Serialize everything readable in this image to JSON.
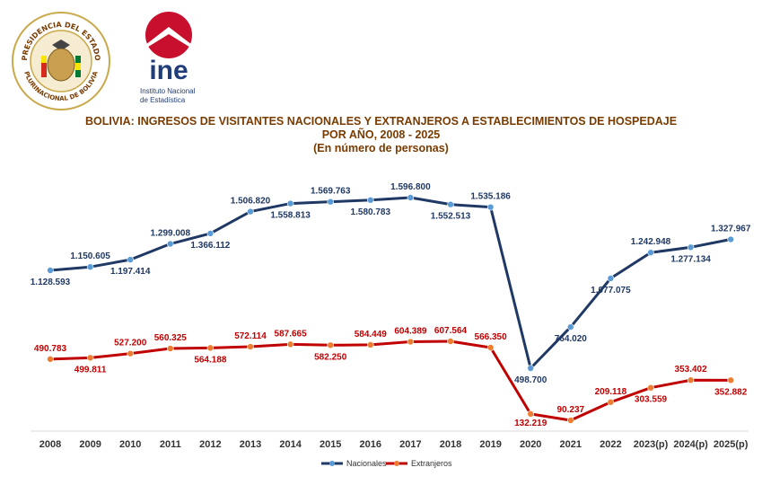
{
  "header": {
    "seal_text_top": "PRESIDENCIA DEL ESTADO",
    "seal_text_bottom": "PLURINACIONAL DE BOLIVIA",
    "logo_main": "ine",
    "logo_sub1": "Instituto Nacional",
    "logo_sub2": "de Estadística"
  },
  "colors": {
    "nacionales": "#1f3864",
    "extranjeros": "#c00000",
    "marker_n": "#5b9bd5",
    "marker_e": "#ed7d31",
    "title": "#7a3b00",
    "logo_red": "#c8102e",
    "logo_blue": "#1f3d7a"
  },
  "chart_data": {
    "type": "line",
    "title": "BOLIVIA: INGRESOS DE VISITANTES NACIONALES Y EXTRANJEROS A ESTABLECIMIENTOS DE HOSPEDAJE",
    "subtitle": "POR AÑO, 2008 - 2025",
    "units": "(En número de personas)",
    "xlabel": "",
    "ylabel": "",
    "legend_position": "bottom",
    "categories": [
      "2008",
      "2009",
      "2010",
      "2011",
      "2012",
      "2013",
      "2014",
      "2015",
      "2016",
      "2017",
      "2018",
      "2019",
      "2020",
      "2021",
      "2022",
      "2023(p)",
      "2024(p)",
      "2025(p)"
    ],
    "series": [
      {
        "name": "Nacionales",
        "values": [
          1128593,
          1150605,
          1197414,
          1299008,
          1366112,
          1506820,
          1558813,
          1569763,
          1580783,
          1596800,
          1552513,
          1535186,
          498700,
          764020,
          1077075,
          1242948,
          1277134,
          1327967
        ],
        "labels": [
          "1.128.593",
          "1.150.605",
          "1.197.414",
          "1.299.008",
          "1.366.112",
          "1.506.820",
          "1.558.813",
          "1.569.763",
          "1.580.783",
          "1.596.800",
          "1.552.513",
          "1.535.186",
          "498.700",
          "764.020",
          "1.077.075",
          "1.242.948",
          "1.277.134",
          "1.327.967"
        ]
      },
      {
        "name": "Extranjeros",
        "values": [
          490783,
          499811,
          527200,
          560325,
          564188,
          572114,
          587665,
          582250,
          584449,
          604389,
          607564,
          566350,
          132219,
          90237,
          209118,
          303559,
          353402,
          352882
        ],
        "labels": [
          "490.783",
          "499.811",
          "527.200",
          "560.325",
          "564.188",
          "572.114",
          "587.665",
          "582.250",
          "584.449",
          "604.389",
          "607.564",
          "566.350",
          "132.219",
          "90.237",
          "209.118",
          "303.559",
          "353.402",
          "352.882"
        ]
      }
    ]
  }
}
